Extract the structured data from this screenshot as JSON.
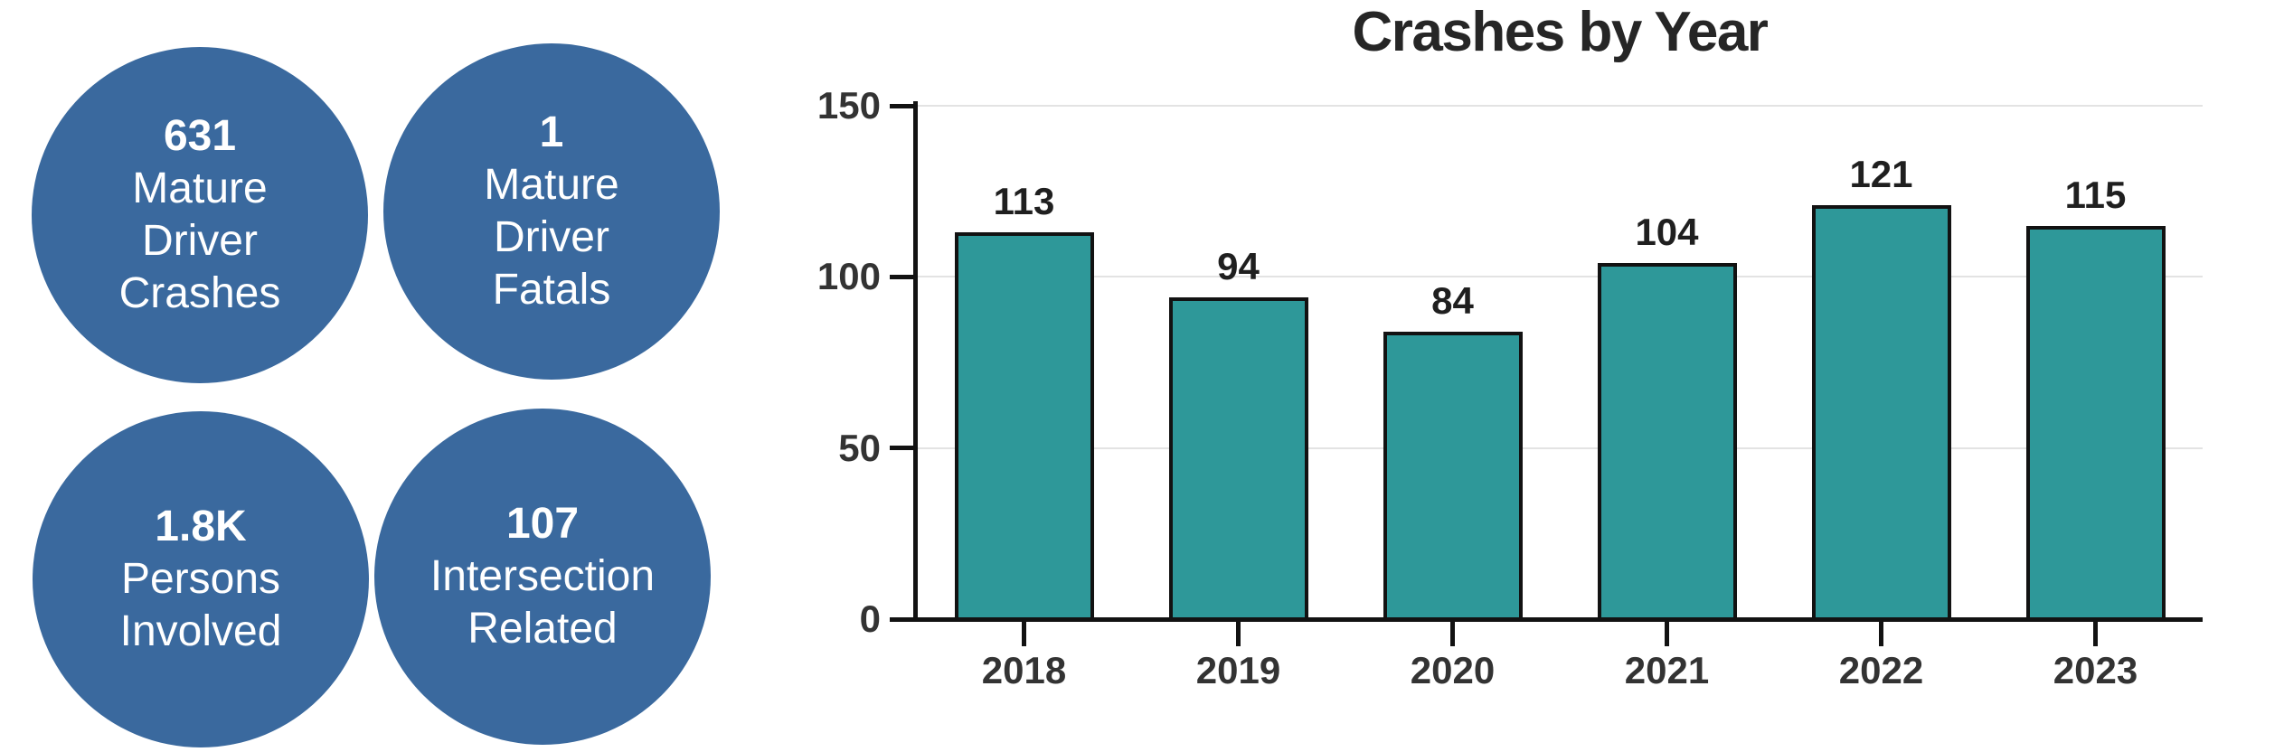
{
  "stats": {
    "items": [
      {
        "value": "631",
        "label": "Mature\nDriver\nCrashes"
      },
      {
        "value": "1",
        "label": "Mature\nDriver\nFatals"
      },
      {
        "value": "1.8K",
        "label": "Persons\nInvolved"
      },
      {
        "value": "107",
        "label": "Intersection\nRelated"
      }
    ]
  },
  "chart": {
    "title": "Crashes by Year"
  },
  "chart_data": {
    "type": "bar",
    "title": "Crashes by Year",
    "categories": [
      "2018",
      "2019",
      "2020",
      "2021",
      "2022",
      "2023"
    ],
    "values": [
      113,
      94,
      84,
      104,
      121,
      115
    ],
    "xlabel": "",
    "ylabel": "",
    "ylim": [
      0,
      150
    ],
    "yticks": [
      0,
      50,
      100,
      150
    ],
    "grid": true,
    "data_labels": true,
    "legend": "none",
    "bar_color": "#2E9899",
    "bar_border_color": "#121212"
  },
  "colors": {
    "circle_fill": "#3A699E",
    "circle_text": "#FFFFFF",
    "title_color": "#262626",
    "axis": "#121212",
    "gridline": "#E3E3E3",
    "tick_text": "#333333",
    "value_text": "#1F1F1F",
    "background": "#FFFFFF"
  }
}
